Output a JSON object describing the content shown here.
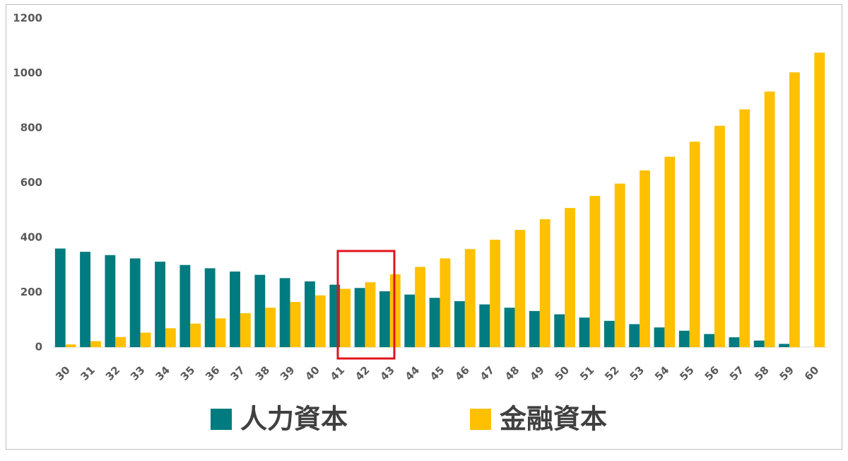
{
  "chart_data": {
    "type": "bar",
    "categories": [
      "30",
      "31",
      "32",
      "33",
      "34",
      "35",
      "36",
      "37",
      "38",
      "39",
      "40",
      "41",
      "42",
      "43",
      "44",
      "45",
      "46",
      "47",
      "48",
      "49",
      "50",
      "51",
      "52",
      "53",
      "54",
      "55",
      "56",
      "57",
      "58",
      "59",
      "60"
    ],
    "series": [
      {
        "name": "人力資本",
        "color": "#007b7f",
        "values": [
          360,
          348,
          336,
          324,
          312,
          300,
          288,
          276,
          264,
          252,
          240,
          228,
          216,
          204,
          192,
          180,
          168,
          156,
          144,
          132,
          120,
          108,
          96,
          84,
          72,
          60,
          48,
          36,
          24,
          12,
          0
        ]
      },
      {
        "name": "金融資本",
        "color": "#ffc000",
        "values": [
          10,
          22,
          37,
          53,
          69,
          86,
          105,
          124,
          144,
          165,
          189,
          213,
          237,
          266,
          293,
          324,
          358,
          392,
          428,
          467,
          508,
          552,
          597,
          645,
          695,
          750,
          808,
          868,
          933,
          1003,
          1075
        ]
      }
    ],
    "ylim": [
      0,
      1200
    ],
    "yticks": [
      0,
      200,
      400,
      600,
      800,
      1000,
      1200
    ],
    "grid": false,
    "legend": "bottom"
  }
}
